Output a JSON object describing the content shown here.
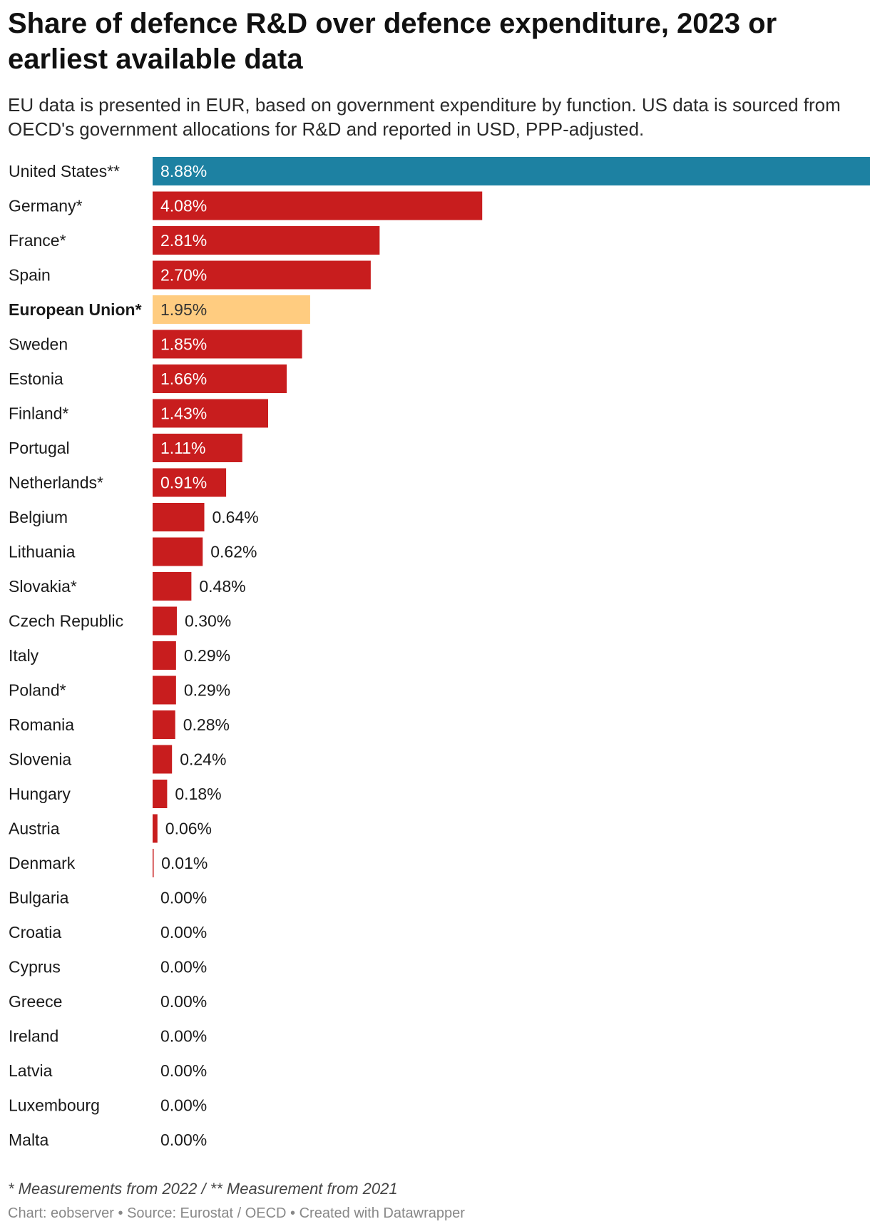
{
  "chart_data": {
    "type": "bar",
    "orientation": "horizontal",
    "title": "Share of defence R&D over defence expenditure, 2023 or earliest available data",
    "subtitle": "EU data is presented in EUR, based on government expenditure by function. US data is sourced from OECD's government allocations for R&D and reported in USD, PPP-adjusted.",
    "categories": [
      "United States**",
      "Germany*",
      "France*",
      "Spain",
      "European Union*",
      "Sweden",
      "Estonia",
      "Finland*",
      "Portugal",
      "Netherlands*",
      "Belgium",
      "Lithuania",
      "Slovakia*",
      "Czech Republic",
      "Italy",
      "Poland*",
      "Romania",
      "Slovenia",
      "Hungary",
      "Austria",
      "Denmark",
      "Bulgaria",
      "Croatia",
      "Cyprus",
      "Greece",
      "Ireland",
      "Latvia",
      "Luxembourg",
      "Malta"
    ],
    "values": [
      8.88,
      4.08,
      2.81,
      2.7,
      1.95,
      1.85,
      1.66,
      1.43,
      1.11,
      0.91,
      0.64,
      0.62,
      0.48,
      0.3,
      0.29,
      0.29,
      0.28,
      0.24,
      0.18,
      0.06,
      0.01,
      0.0,
      0.0,
      0.0,
      0.0,
      0.0,
      0.0,
      0.0,
      0.0
    ],
    "value_labels": [
      "8.88%",
      "4.08%",
      "2.81%",
      "2.70%",
      "1.95%",
      "1.85%",
      "1.66%",
      "1.43%",
      "1.11%",
      "0.91%",
      "0.64%",
      "0.62%",
      "0.48%",
      "0.30%",
      "0.29%",
      "0.29%",
      "0.28%",
      "0.24%",
      "0.18%",
      "0.06%",
      "0.01%",
      "0.00%",
      "0.00%",
      "0.00%",
      "0.00%",
      "0.00%",
      "0.00%",
      "0.00%",
      "0.00%"
    ],
    "bar_colors": [
      "#1d81a2",
      "#c81d1e",
      "#c81d1e",
      "#c81d1e",
      "#ffcc80",
      "#c81d1e",
      "#c81d1e",
      "#c81d1e",
      "#c81d1e",
      "#c81d1e",
      "#c81d1e",
      "#c81d1e",
      "#c81d1e",
      "#c81d1e",
      "#c81d1e",
      "#c81d1e",
      "#c81d1e",
      "#c81d1e",
      "#c81d1e",
      "#c81d1e",
      "#c81d1e",
      "#c81d1e",
      "#c81d1e",
      "#c81d1e",
      "#c81d1e",
      "#c81d1e",
      "#c81d1e",
      "#c81d1e",
      "#c81d1e"
    ],
    "highlighted_category": "European Union*",
    "xlim": [
      0,
      8.88
    ],
    "unit": "%",
    "grid": false,
    "legend": "none"
  },
  "notes": "* Measurements from 2022 / ** Measurement from 2021",
  "footer": "Chart: eobserver • Source: Eurostat / OECD • Created with Datawrapper",
  "colors": {
    "us": "#1d81a2",
    "countries": "#c81d1e",
    "eu": "#ffcc80"
  }
}
